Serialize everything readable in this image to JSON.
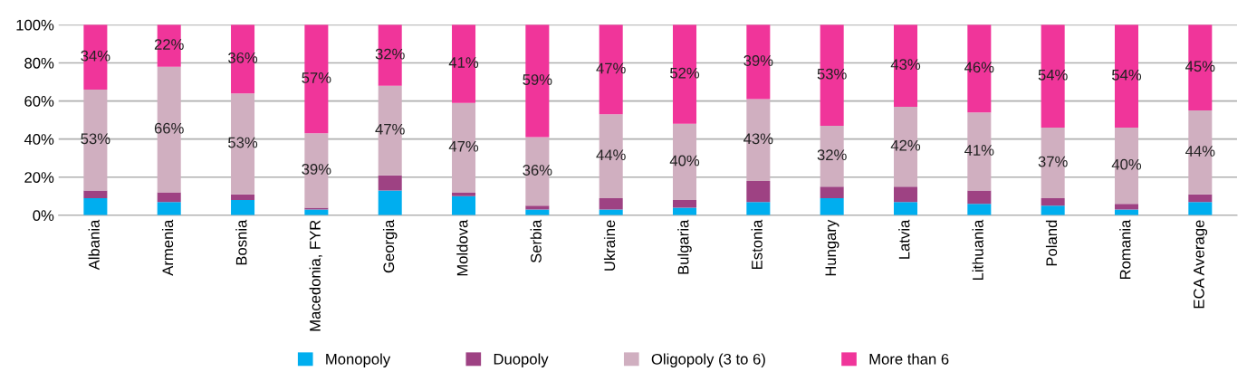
{
  "chart_data": {
    "type": "bar",
    "stacked": true,
    "categories": [
      "Albania",
      "Armenia",
      "Bosnia",
      "Macedonia, FYR",
      "Georgia",
      "Moldova",
      "Serbia",
      "Ukraine",
      "Bulgaria",
      "Estonia",
      "Hungary",
      "Latvia",
      "Lithuania",
      "Poland",
      "Romania",
      "ECA Average"
    ],
    "series": [
      {
        "name": "Monopoly",
        "color": "#00aeef",
        "values": [
          9,
          7,
          8,
          3,
          13,
          10,
          3,
          3,
          4,
          7,
          9,
          7,
          6,
          5,
          3,
          7
        ]
      },
      {
        "name": "Duopoly",
        "color": "#9e4283",
        "values": [
          4,
          5,
          3,
          1,
          8,
          2,
          2,
          6,
          4,
          11,
          6,
          8,
          7,
          4,
          3,
          4
        ]
      },
      {
        "name": "Oligopoly (3 to 6)",
        "color": "#d0afc0",
        "values": [
          53,
          66,
          53,
          39,
          47,
          47,
          36,
          44,
          40,
          43,
          32,
          42,
          41,
          37,
          40,
          44
        ],
        "value_labels": [
          "53%",
          "66%",
          "53%",
          "39%",
          "47%",
          "47%",
          "36%",
          "44%",
          "40%",
          "43%",
          "32%",
          "42%",
          "41%",
          "37%",
          "40%",
          "44%"
        ]
      },
      {
        "name": "More than 6",
        "color": "#f0359a",
        "values": [
          34,
          22,
          36,
          57,
          32,
          41,
          59,
          47,
          52,
          39,
          53,
          43,
          46,
          54,
          54,
          45
        ],
        "value_labels": [
          "34%",
          "22%",
          "36%",
          "57%",
          "32%",
          "41%",
          "59%",
          "47%",
          "52%",
          "39%",
          "53%",
          "43%",
          "46%",
          "54%",
          "54%",
          "45%"
        ]
      }
    ],
    "ylim": [
      0,
      100
    ],
    "yticks": [
      {
        "value": 0,
        "label": "0%"
      },
      {
        "value": 20,
        "label": "20%"
      },
      {
        "value": 40,
        "label": "40%"
      },
      {
        "value": 60,
        "label": "60%"
      },
      {
        "value": 80,
        "label": "80%"
      },
      {
        "value": 100,
        "label": "100%"
      }
    ],
    "grid": "y",
    "legend": "bottom"
  }
}
